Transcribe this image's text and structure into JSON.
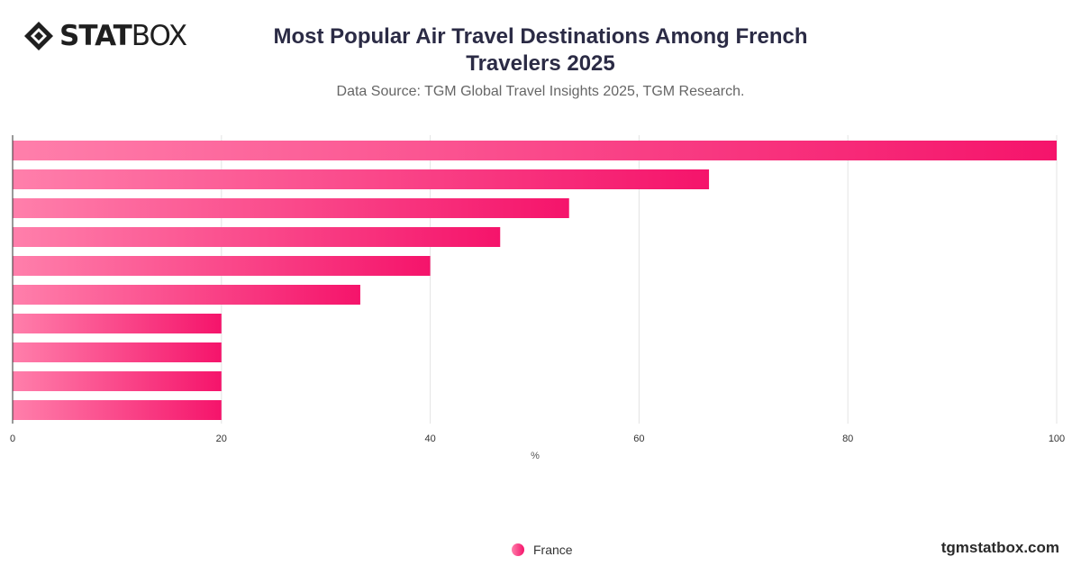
{
  "brand": {
    "logo_strong": "STAT",
    "logo_light": "BOX",
    "footer_url": "tgmstatbox.com"
  },
  "chart_data": {
    "type": "bar",
    "orientation": "horizontal",
    "title": "Most Popular Air Travel Destinations Among French Travelers 2025",
    "subtitle": "Data Source: TGM Global Travel Insights 2025, TGM Research.",
    "xlabel": "%",
    "ylabel": "",
    "xlim": [
      0,
      100
    ],
    "x_ticks": [
      0,
      20,
      40,
      60,
      80,
      100
    ],
    "grid": true,
    "categories": [
      "",
      "",
      "",
      "",
      "",
      "",
      "",
      "",
      "",
      ""
    ],
    "series": [
      {
        "name": "France",
        "values": [
          100,
          66.7,
          53.3,
          46.7,
          40,
          33.3,
          20,
          20,
          20,
          20
        ]
      }
    ],
    "legend_position": "bottom-center",
    "colors": {
      "bar_start": "#ff7fab",
      "bar_end": "#f5146b",
      "grid": "#e3e3e3",
      "axis": "#333333"
    }
  }
}
